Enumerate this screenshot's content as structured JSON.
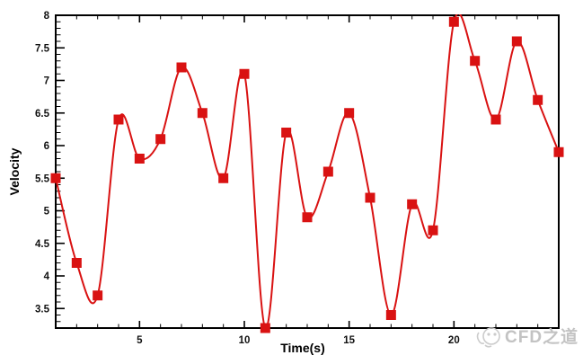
{
  "chart_data": {
    "type": "line",
    "title": "",
    "xlabel": "Time(s)",
    "ylabel": "Velocity",
    "x": [
      1,
      2,
      3,
      4,
      5,
      6,
      7,
      8,
      9,
      10,
      11,
      12,
      13,
      14,
      15,
      16,
      17,
      18,
      19,
      20,
      21,
      22,
      23,
      24,
      25
    ],
    "series": [
      {
        "name": "Velocity",
        "values": [
          5.5,
          4.2,
          3.7,
          6.4,
          5.8,
          6.1,
          7.2,
          6.5,
          5.5,
          7.1,
          3.2,
          6.2,
          4.9,
          5.6,
          6.5,
          5.2,
          3.4,
          5.1,
          4.7,
          7.9,
          7.3,
          6.4,
          7.6,
          6.7,
          5.9
        ]
      }
    ],
    "xlim": [
      1,
      25
    ],
    "ylim": [
      3.2,
      8
    ],
    "x_major_ticks": [
      5,
      10,
      15,
      20
    ],
    "x_minor_step": 1,
    "y_major_ticks": [
      3.5,
      4,
      4.5,
      5,
      5.5,
      6,
      6.5,
      7,
      7.5,
      8
    ],
    "y_minor_step": 0.1,
    "grid": false,
    "legend_position": "none",
    "smooth_curve": true,
    "line_color": "#d91212",
    "marker": "square",
    "marker_color": "#d91212",
    "marker_size": 11,
    "axis_color": "#000000"
  },
  "watermark": {
    "text": "CFD之道",
    "color": "#c3c3c3",
    "icon": "cfd-bubble-logo"
  }
}
